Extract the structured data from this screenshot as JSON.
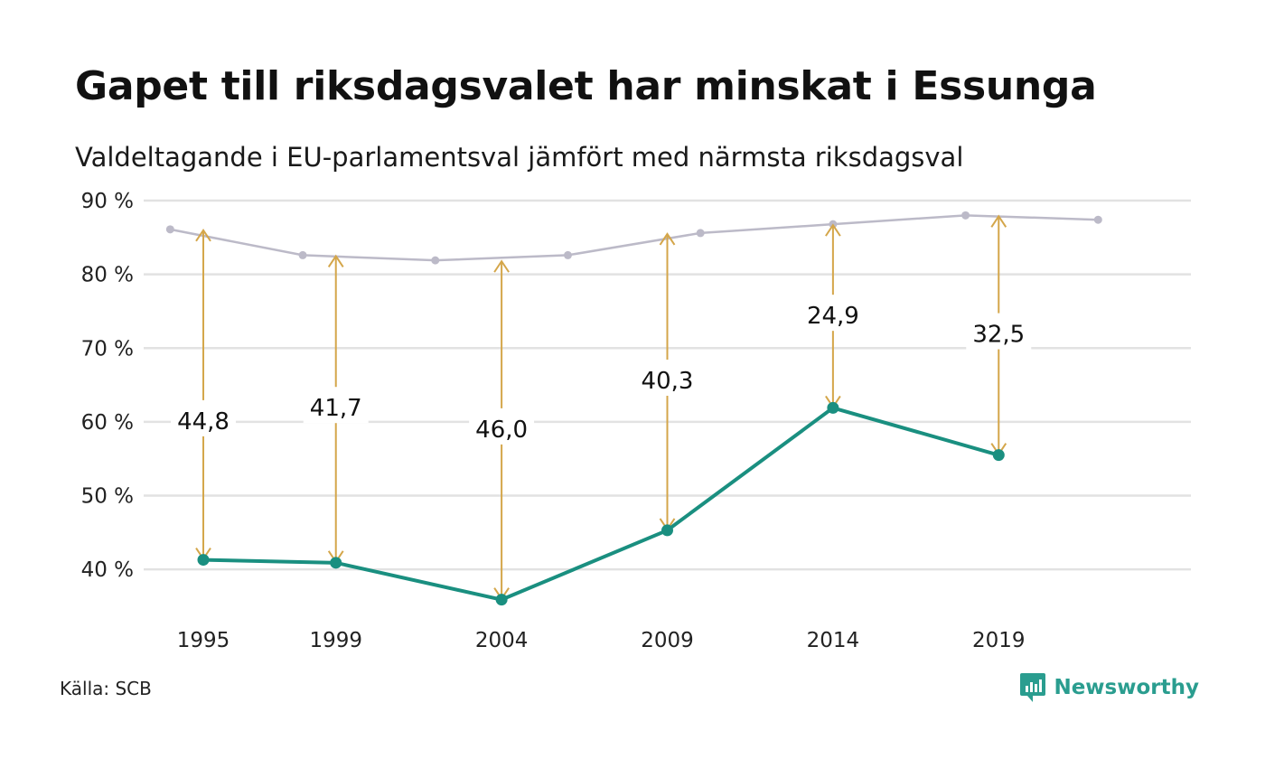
{
  "title": "Gapet till riksdagsvalet har minskat i Essunga",
  "subtitle": "Valdeltagande i EU-parlamentsval jämfört med närmsta riksdagsval",
  "source": "Källa: SCB",
  "brand": "Newsworthy",
  "colors": {
    "eu": "#1a8f80",
    "riksdag": "#bcbac8",
    "arrow": "#d4a64a",
    "grid": "#e2e2e2"
  },
  "chart_data": {
    "type": "line",
    "title": "Gapet till riksdagsvalet har minskat i Essunga",
    "subtitle": "Valdeltagande i EU-parlamentsval jämfört med närmsta riksdagsval",
    "ylim": [
      35,
      90
    ],
    "xlim": [
      1993.2,
      2024.8
    ],
    "y_ticks": [
      40,
      50,
      60,
      70,
      80,
      90
    ],
    "y_tick_labels": [
      "40 %",
      "50 %",
      "60 %",
      "70 %",
      "80 %",
      "90 %"
    ],
    "x_ticks": [
      1995,
      1999,
      2004,
      2009,
      2014,
      2019
    ],
    "x_tick_labels": [
      "1995",
      "1999",
      "2004",
      "2009",
      "2014",
      "2019"
    ],
    "grid": true,
    "series": [
      {
        "key": "riksdag",
        "x": [
          1994,
          1998,
          2002,
          2006,
          2010,
          2014,
          2018,
          2022
        ],
        "y": [
          86.1,
          82.6,
          81.9,
          82.6,
          85.6,
          86.8,
          88.0,
          87.4
        ]
      },
      {
        "key": "eu",
        "x": [
          1995,
          1999,
          2004,
          2009,
          2014,
          2019
        ],
        "y": [
          41.3,
          40.9,
          35.9,
          45.3,
          61.9,
          55.5
        ]
      }
    ],
    "gaps": [
      {
        "x": 1995,
        "from": 41.3,
        "to": 86.1,
        "label": "44,8",
        "label_y": 60.0
      },
      {
        "x": 1999,
        "from": 40.9,
        "to": 82.6,
        "label": "41,7",
        "label_y": 61.8
      },
      {
        "x": 2004,
        "from": 35.9,
        "to": 81.9,
        "label": "46,0",
        "label_y": 58.9
      },
      {
        "x": 2009,
        "from": 45.3,
        "to": 85.6,
        "label": "40,3",
        "label_y": 65.5
      },
      {
        "x": 2014,
        "from": 61.9,
        "to": 86.8,
        "label": "24,9",
        "label_y": 74.3
      },
      {
        "x": 2019,
        "from": 55.5,
        "to": 88.0,
        "label": "32,5",
        "label_y": 71.8
      }
    ]
  }
}
